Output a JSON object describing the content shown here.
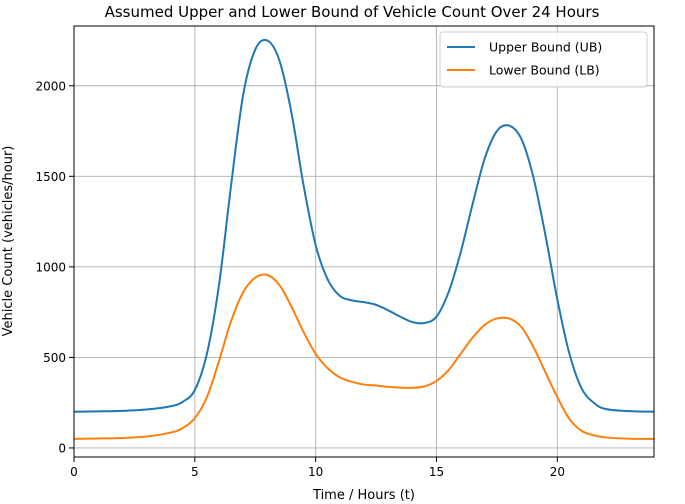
{
  "chart_data": {
    "type": "line",
    "title": "Assumed Upper and Lower Bound of Vehicle Count Over 24 Hours",
    "xlabel": "Time / Hours (t)",
    "ylabel": "Vehicle Count (vehicles/hour)",
    "xlim": [
      0,
      24
    ],
    "ylim": [
      -50,
      2330
    ],
    "xticks": [
      0,
      5,
      10,
      15,
      20
    ],
    "yticks": [
      0,
      500,
      1000,
      1500,
      2000
    ],
    "grid": true,
    "legend_position": "top-right",
    "series": [
      {
        "name": "Upper Bound (UB)",
        "color": "#1f77b4",
        "x": [
          0,
          1,
          2,
          3,
          4,
          4.5,
          5,
          5.5,
          6,
          6.5,
          7,
          7.5,
          8,
          8.5,
          9,
          9.5,
          10,
          10.5,
          11,
          11.5,
          12,
          12.5,
          13,
          13.5,
          14,
          14.5,
          15,
          15.5,
          16,
          16.5,
          17,
          17.5,
          18,
          18.5,
          19,
          19.5,
          20,
          20.5,
          21,
          21.5,
          22,
          23,
          24
        ],
        "y": [
          200,
          202,
          205,
          212,
          230,
          255,
          320,
          520,
          900,
          1450,
          1950,
          2200,
          2250,
          2140,
          1850,
          1450,
          1120,
          930,
          840,
          815,
          805,
          790,
          760,
          725,
          695,
          690,
          725,
          860,
          1080,
          1350,
          1600,
          1750,
          1780,
          1710,
          1500,
          1180,
          820,
          520,
          330,
          250,
          215,
          203,
          200
        ]
      },
      {
        "name": "Lower Bound (LB)",
        "color": "#ff7f0e",
        "x": [
          0,
          1,
          2,
          3,
          4,
          4.5,
          5,
          5.5,
          6,
          6.5,
          7,
          7.5,
          8,
          8.5,
          9,
          9.5,
          10,
          10.5,
          11,
          11.5,
          12,
          12.5,
          13,
          13.5,
          14,
          14.5,
          15,
          15.5,
          16,
          16.5,
          17,
          17.5,
          18,
          18.5,
          19,
          19.5,
          20,
          20.5,
          21,
          21.5,
          22,
          23,
          24
        ],
        "y": [
          50,
          52,
          55,
          63,
          85,
          110,
          165,
          280,
          480,
          700,
          860,
          940,
          955,
          900,
          780,
          640,
          520,
          440,
          390,
          365,
          350,
          345,
          337,
          333,
          332,
          340,
          370,
          430,
          520,
          610,
          680,
          715,
          715,
          670,
          560,
          420,
          280,
          160,
          95,
          70,
          58,
          51,
          50
        ]
      }
    ]
  }
}
